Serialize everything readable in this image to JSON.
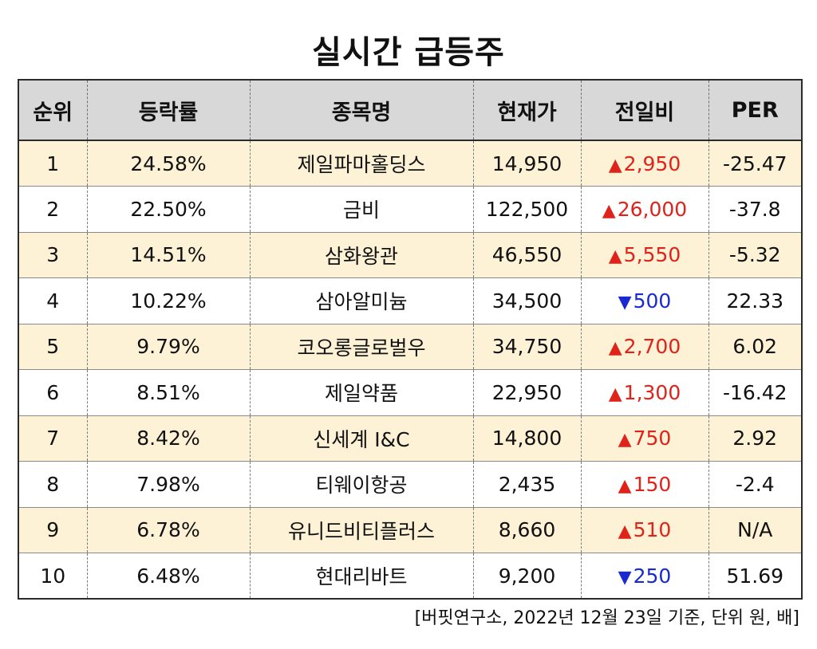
{
  "title": "실시간 급등주",
  "table": {
    "headers": [
      "순위",
      "등락률",
      "종목명",
      "현재가",
      "전일비",
      "PER"
    ],
    "rows": [
      {
        "rank": "1",
        "change_rate": "24.58%",
        "name": "제일파마홀딩스",
        "price": "14,950",
        "diff": "2,950",
        "direction": "up",
        "per": "-25.47"
      },
      {
        "rank": "2",
        "change_rate": "22.50%",
        "name": "금비",
        "price": "122,500",
        "diff": "26,000",
        "direction": "up",
        "per": "-37.8"
      },
      {
        "rank": "3",
        "change_rate": "14.51%",
        "name": "삼화왕관",
        "price": "46,550",
        "diff": "5,550",
        "direction": "up",
        "per": "-5.32"
      },
      {
        "rank": "4",
        "change_rate": "10.22%",
        "name": "삼아알미늄",
        "price": "34,500",
        "diff": "500",
        "direction": "down",
        "per": "22.33"
      },
      {
        "rank": "5",
        "change_rate": "9.79%",
        "name": "코오롱글로벌우",
        "price": "34,750",
        "diff": "2,700",
        "direction": "up",
        "per": "6.02"
      },
      {
        "rank": "6",
        "change_rate": "8.51%",
        "name": "제일약품",
        "price": "22,950",
        "diff": "1,300",
        "direction": "up",
        "per": "-16.42"
      },
      {
        "rank": "7",
        "change_rate": "8.42%",
        "name": "신세계 I&C",
        "price": "14,800",
        "diff": "750",
        "direction": "up",
        "per": "2.92"
      },
      {
        "rank": "8",
        "change_rate": "7.98%",
        "name": "티웨이항공",
        "price": "2,435",
        "diff": "150",
        "direction": "up",
        "per": "-2.4"
      },
      {
        "rank": "9",
        "change_rate": "6.78%",
        "name": "유니드비티플러스",
        "price": "8,660",
        "diff": "510",
        "direction": "up",
        "per": "N/A"
      },
      {
        "rank": "10",
        "change_rate": "6.48%",
        "name": "현대리바트",
        "price": "9,200",
        "diff": "250",
        "direction": "down",
        "per": "51.69"
      }
    ]
  },
  "arrows": {
    "up": "▲",
    "down": "▼"
  },
  "colors": {
    "header_bg": "#d8d8d8",
    "odd_row_bg": "#fdf1d6",
    "even_row_bg": "#ffffff",
    "up": "#e0231a",
    "down": "#1a2ad0"
  },
  "footnote": "[버핏연구소, 2022년 12월 23일 기준, 단위 원, 배]"
}
